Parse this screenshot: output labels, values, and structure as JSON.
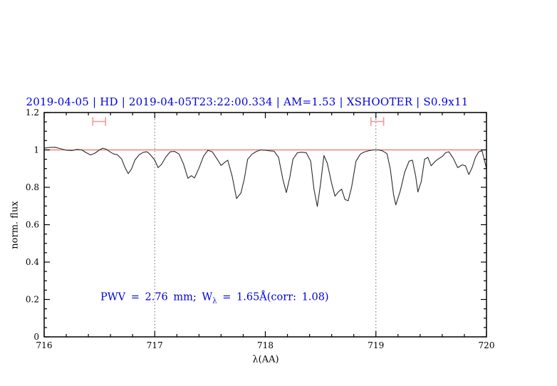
{
  "title": {
    "text": "2019-04-05 | HD | 2019-04-05T23:22:00.334 | AM=1.53 | XSHOOTER | S0.9x11",
    "color": "#0000dd"
  },
  "annotation": {
    "part1": "PWV = 2.76 mm; W",
    "sub": "λ",
    "part2": " = 1.65Å(corr: 1.08)",
    "color": "#0000dd"
  },
  "chart_data": {
    "type": "line",
    "title": "2019-04-05 | HD | 2019-04-05T23:22:00.334 | AM=1.53 | XSHOOTER | S0.9x11",
    "xlabel": "λ(AA)",
    "ylabel": "norm. flux",
    "xlim": [
      716,
      720
    ],
    "ylim": [
      0,
      1.2
    ],
    "grid": false,
    "legend": "none",
    "x_major_ticks": [
      716,
      717,
      718,
      719,
      720
    ],
    "x_tick_labels": [
      "716",
      "717",
      "718",
      "719",
      "720"
    ],
    "x_minor_step": 0.2,
    "y_major_ticks": [
      0,
      0.2,
      0.4,
      0.6,
      0.8,
      1.0,
      1.2
    ],
    "y_tick_labels": [
      "0",
      "0.2",
      "0.4",
      "0.6",
      "0.8",
      "1",
      "1.2"
    ],
    "y_minor_step": 0.05,
    "dotted_guides_x": [
      717,
      719
    ],
    "guide_color": "#666666",
    "continuum_line": {
      "y": 1.0,
      "color": "#ee6f6f"
    },
    "range_markers": [
      {
        "x1": 716.44,
        "x2": 716.555,
        "y": 1.152,
        "color": "#f29a9a"
      },
      {
        "x1": 718.955,
        "x2": 719.07,
        "y": 1.152,
        "color": "#f29a9a"
      }
    ],
    "series": [
      {
        "name": "spectrum",
        "color": "#2b2b2b",
        "x": [
          716.0,
          716.05,
          716.1,
          716.15,
          716.2,
          716.25,
          716.3,
          716.34,
          716.38,
          716.42,
          716.46,
          716.5,
          716.53,
          716.56,
          716.6,
          716.63,
          716.66,
          716.7,
          716.73,
          716.76,
          716.79,
          716.82,
          716.86,
          716.9,
          716.93,
          716.96,
          717.0,
          717.03,
          717.06,
          717.1,
          717.14,
          717.18,
          717.22,
          717.26,
          717.3,
          717.33,
          717.36,
          717.4,
          717.44,
          717.48,
          717.52,
          717.56,
          717.6,
          717.63,
          717.66,
          717.7,
          717.74,
          717.78,
          717.81,
          717.84,
          717.88,
          717.92,
          717.96,
          718.0,
          718.04,
          718.08,
          718.12,
          718.16,
          718.19,
          718.22,
          718.25,
          718.29,
          718.33,
          718.37,
          718.41,
          718.44,
          718.47,
          718.5,
          718.53,
          718.56,
          718.6,
          718.63,
          718.66,
          718.69,
          718.72,
          718.75,
          718.78,
          718.82,
          718.86,
          718.9,
          718.94,
          718.98,
          719.02,
          719.06,
          719.1,
          719.13,
          719.16,
          719.18,
          719.22,
          719.26,
          719.3,
          719.33,
          719.36,
          719.38,
          719.41,
          719.44,
          719.47,
          719.5,
          719.53,
          719.56,
          719.6,
          719.63,
          719.66,
          719.7,
          719.74,
          719.78,
          719.81,
          719.84,
          719.87,
          719.9,
          719.93,
          719.96,
          720.0
        ],
        "flux": [
          1.01,
          1.013,
          1.014,
          1.006,
          0.998,
          0.996,
          1.003,
          1.0,
          0.985,
          0.973,
          0.983,
          1.0,
          1.009,
          1.004,
          0.988,
          0.978,
          0.975,
          0.952,
          0.908,
          0.873,
          0.898,
          0.945,
          0.975,
          0.988,
          0.99,
          0.975,
          0.945,
          0.905,
          0.922,
          0.962,
          0.99,
          0.992,
          0.978,
          0.925,
          0.848,
          0.862,
          0.85,
          0.902,
          0.965,
          0.998,
          0.99,
          0.955,
          0.917,
          0.932,
          0.945,
          0.86,
          0.74,
          0.77,
          0.845,
          0.95,
          0.978,
          0.992,
          1.0,
          0.998,
          0.995,
          0.993,
          0.96,
          0.84,
          0.772,
          0.85,
          0.95,
          0.985,
          0.988,
          0.985,
          0.94,
          0.79,
          0.697,
          0.82,
          0.97,
          0.93,
          0.82,
          0.753,
          0.775,
          0.79,
          0.735,
          0.728,
          0.8,
          0.94,
          0.978,
          0.99,
          0.996,
          1.0,
          1.0,
          0.995,
          0.98,
          0.9,
          0.76,
          0.706,
          0.78,
          0.88,
          0.94,
          0.945,
          0.86,
          0.775,
          0.83,
          0.95,
          0.96,
          0.915,
          0.935,
          0.95,
          0.965,
          0.985,
          0.99,
          0.955,
          0.905,
          0.92,
          0.915,
          0.868,
          0.905,
          0.96,
          0.99,
          0.995,
          0.9
        ]
      }
    ]
  }
}
